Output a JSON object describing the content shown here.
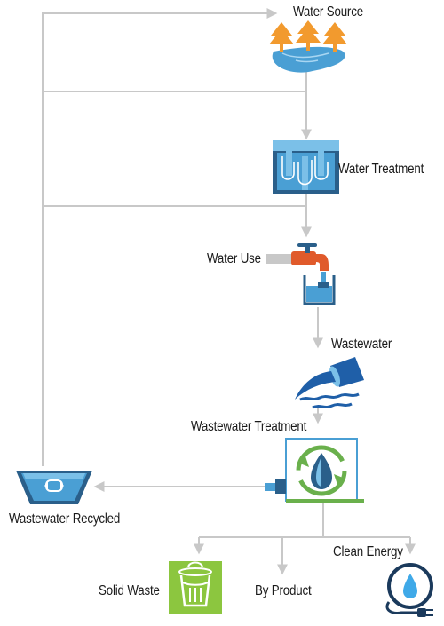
{
  "nodes": {
    "water_source": "Water Source",
    "water_treatment": "Water Treatment",
    "water_use": "Water Use",
    "wastewater": "Wastewater",
    "wastewater_treatment": "Wastewater Treatment",
    "wastewater_recycled": "Wastewater Recycled",
    "clean_energy": "Clean Energy",
    "solid_waste": "Solid Waste",
    "by_product": "By Product"
  },
  "colors": {
    "line": "#c8c8c8",
    "water_blue": "#4a9fd4",
    "light_blue": "#7bc0e8",
    "dark_blue": "#2a5f8a",
    "orange": "#f29a2e",
    "tap_red": "#e05a2b",
    "green": "#6ab04c",
    "bright_green": "#8cc63f",
    "navy": "#1b3a5c"
  },
  "icons": [
    "trees-lake-icon",
    "treatment-tank-icon",
    "faucet-icon",
    "wastewater-pipe-icon",
    "recycle-treatment-icon",
    "recycle-basin-icon",
    "clean-energy-plug-icon",
    "solid-waste-bin-icon"
  ]
}
